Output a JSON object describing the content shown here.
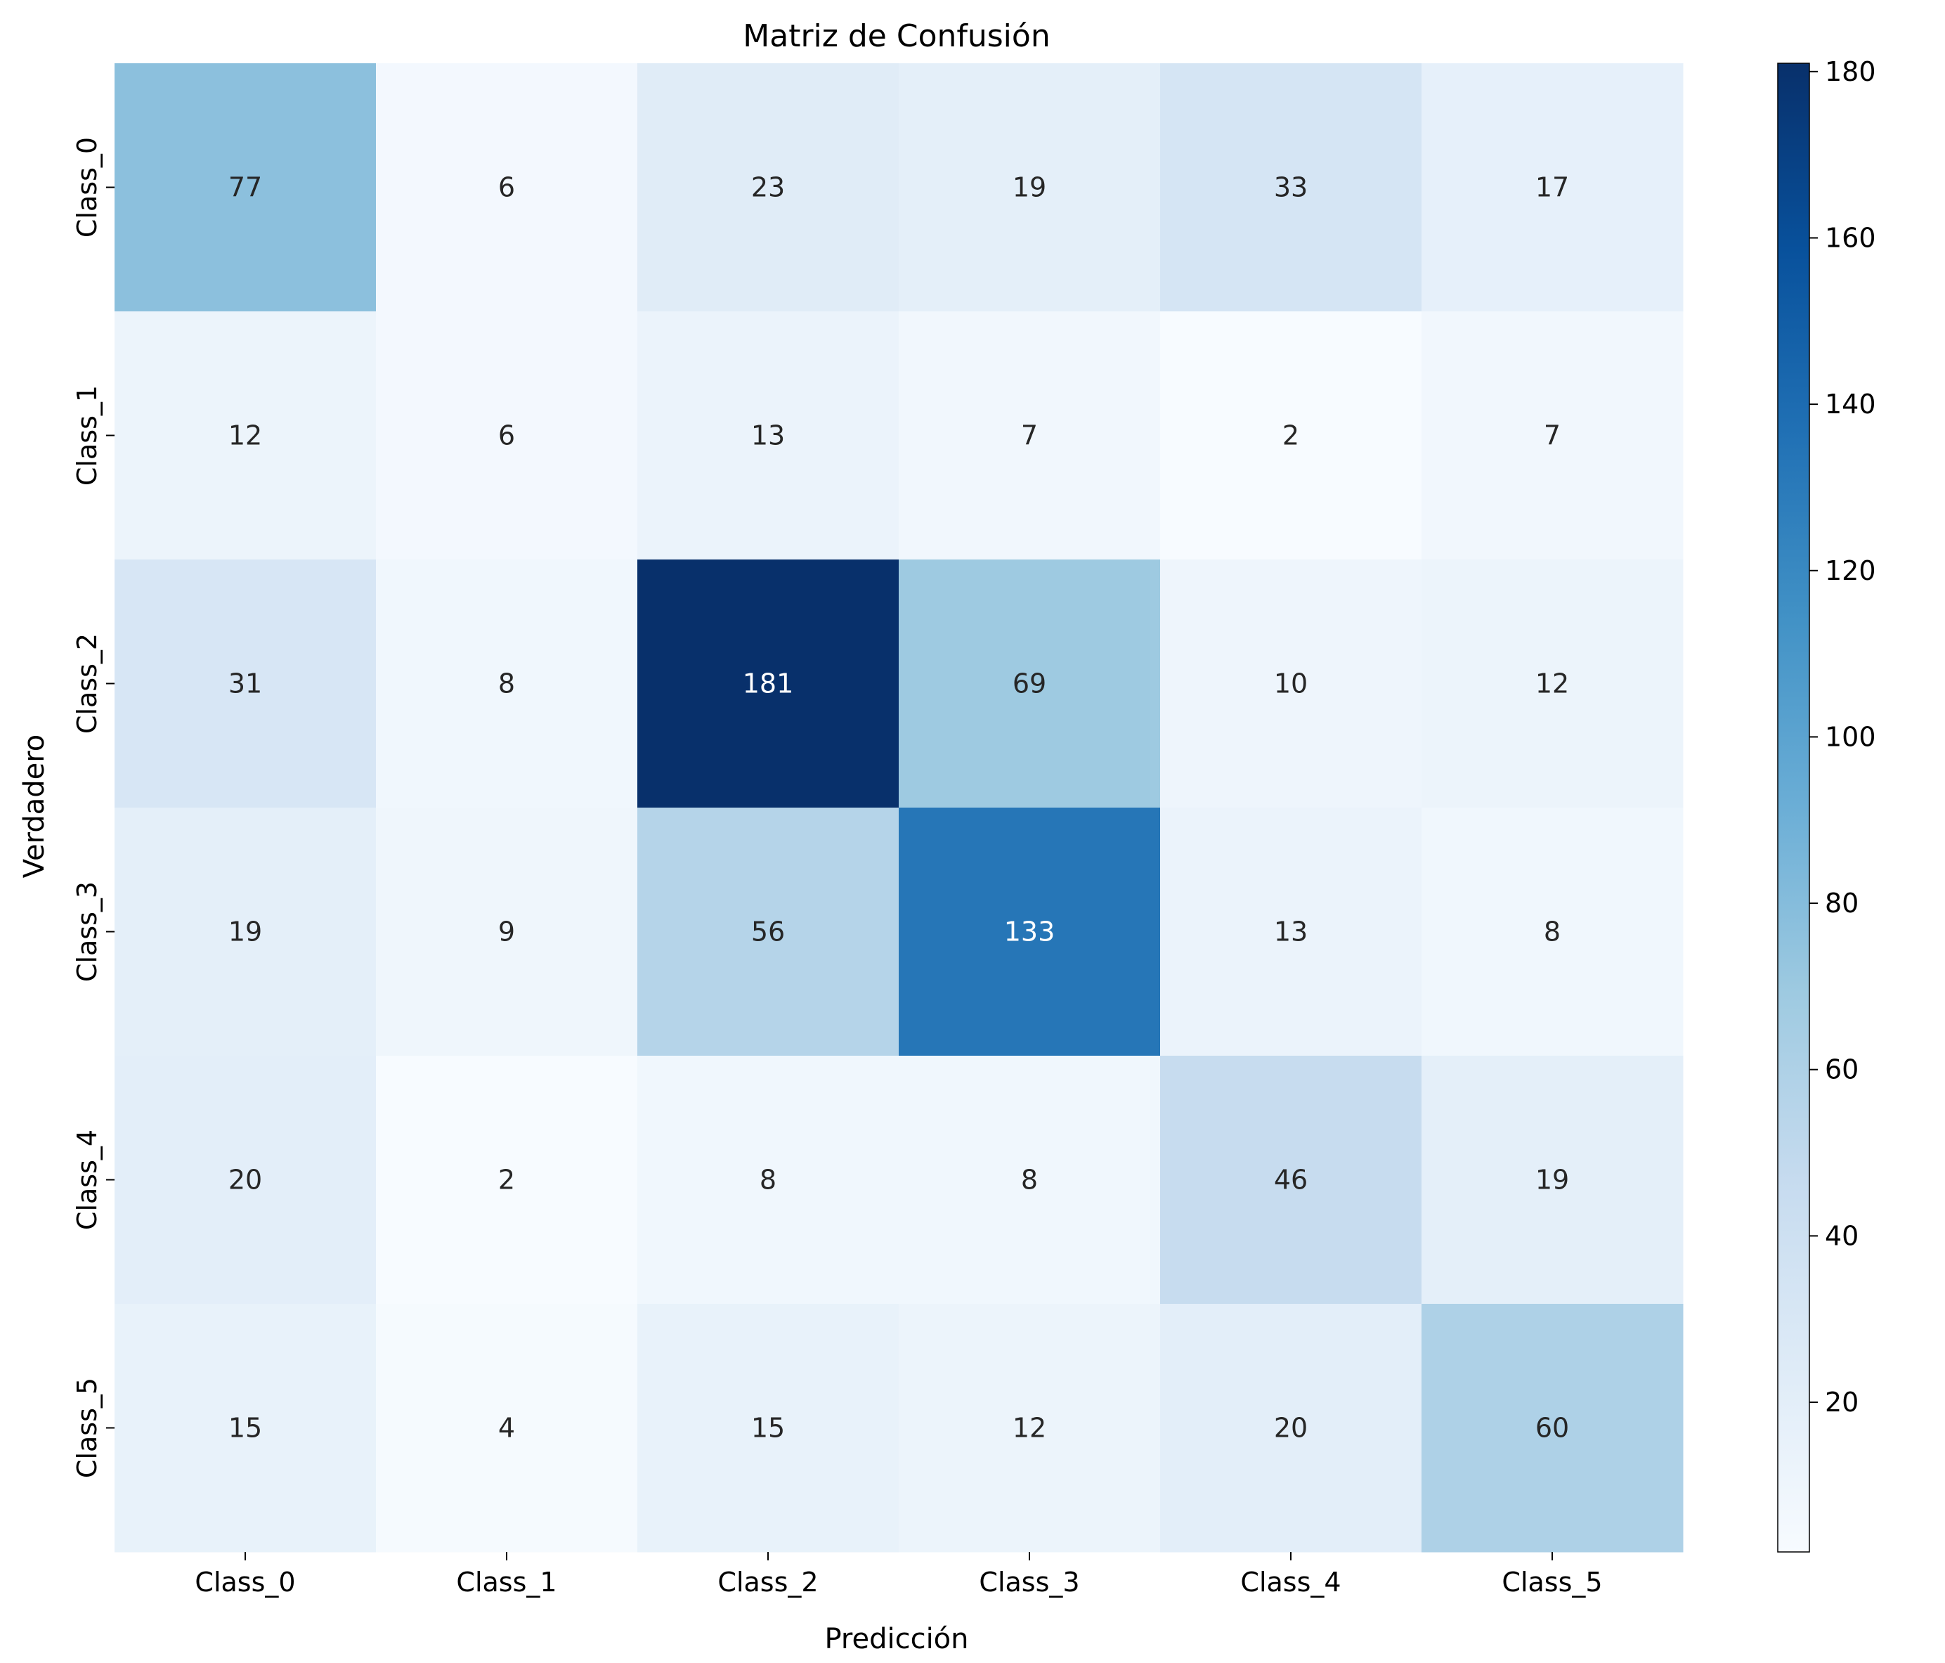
{
  "chart_data": {
    "type": "heatmap",
    "title": "Matriz de Confusión",
    "xlabel": "Predicción",
    "ylabel": "Verdadero",
    "x_categories": [
      "Class_0",
      "Class_1",
      "Class_2",
      "Class_3",
      "Class_4",
      "Class_5"
    ],
    "y_categories": [
      "Class_0",
      "Class_1",
      "Class_2",
      "Class_3",
      "Class_4",
      "Class_5"
    ],
    "values": [
      [
        77,
        6,
        23,
        19,
        33,
        17
      ],
      [
        12,
        6,
        13,
        7,
        2,
        7
      ],
      [
        31,
        8,
        181,
        69,
        10,
        12
      ],
      [
        19,
        9,
        56,
        133,
        13,
        8
      ],
      [
        20,
        2,
        8,
        8,
        46,
        19
      ],
      [
        15,
        4,
        15,
        12,
        20,
        60
      ]
    ],
    "colormap": "Blues",
    "color_min": 2,
    "color_max": 181,
    "colorbar_ticks": [
      20,
      40,
      60,
      80,
      100,
      120,
      140,
      160,
      180
    ],
    "grid": false,
    "legend": "colorbar-right"
  }
}
